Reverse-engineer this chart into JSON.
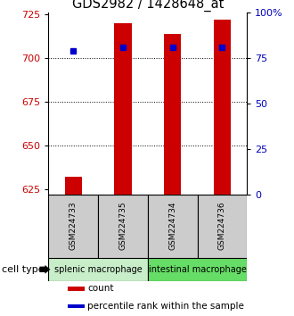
{
  "title": "GDS2982 / 1428648_at",
  "samples": [
    "GSM224733",
    "GSM224735",
    "GSM224734",
    "GSM224736"
  ],
  "bar_values": [
    632,
    720,
    714,
    722
  ],
  "percentile_values": [
    704,
    706,
    706,
    706
  ],
  "bar_color": "#cc0000",
  "percentile_color": "#0000cc",
  "ylim_left": [
    622,
    726
  ],
  "yticks_left": [
    625,
    650,
    675,
    700,
    725
  ],
  "ylim_right": [
    0,
    100
  ],
  "yticks_right": [
    0,
    25,
    50,
    75,
    100
  ],
  "ytick_labels_right": [
    "0",
    "25",
    "50",
    "75",
    "100%"
  ],
  "grid_yticks": [
    650,
    675,
    700
  ],
  "groups": [
    {
      "label": "splenic macrophage",
      "color": "#c8edc9",
      "samples": [
        0,
        1
      ]
    },
    {
      "label": "intestinal macrophage",
      "color": "#66dd66",
      "samples": [
        2,
        3
      ]
    }
  ],
  "group_label_prefix": "cell type",
  "legend_items": [
    {
      "color": "#cc0000",
      "label": "count"
    },
    {
      "color": "#0000cc",
      "label": "percentile rank within the sample"
    }
  ],
  "bar_width": 0.35,
  "bg_color": "#ffffff",
  "plot_bg": "#ffffff",
  "label_color_left": "#cc0000",
  "label_color_right": "#0000bb",
  "sample_box_color": "#cccccc",
  "title_fontsize": 10.5,
  "tick_fontsize": 8
}
